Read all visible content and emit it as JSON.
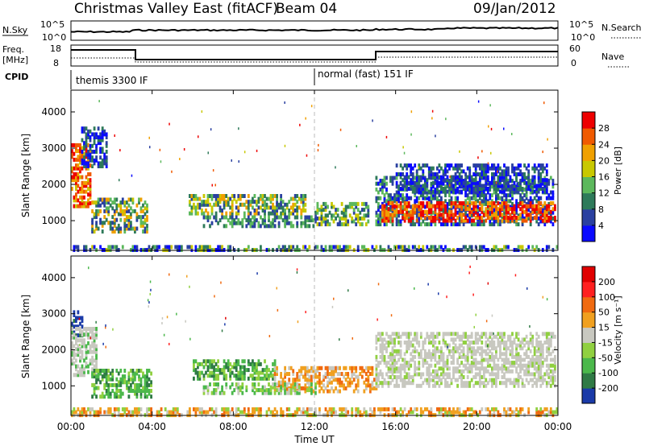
{
  "header": {
    "title": "Christmas Valley East (fitACF)",
    "beam": "Beam 04",
    "date": "09/Jan/2012"
  },
  "strip": {
    "nsky_label": "N.Sky",
    "nsky_ticks": [
      "10^5",
      "10^0"
    ],
    "nsearch_label": "N.Search",
    "nsearch_ticks": [
      "10^5",
      "10^0"
    ],
    "freq_label": "Freq.",
    "freq_unit": "[MHz]",
    "freq_ticks": [
      "18",
      "8"
    ],
    "nave_label": "Nave",
    "nave_ticks": [
      "60",
      "0"
    ],
    "cpid_label": "CPID",
    "cpid_modes": [
      {
        "label": "themis 3300 IF",
        "start_hour": 0
      },
      {
        "label": "normal (fast) 151 IF",
        "start_hour": 12
      }
    ]
  },
  "chart_data": [
    {
      "type": "heatmap",
      "name": "power",
      "ylabel": "Slant Range [km]",
      "xlabel": "Time UT",
      "xlim": [
        0,
        24
      ],
      "ylim": [
        180,
        4600
      ],
      "yticks": [
        "1000",
        "2000",
        "3000",
        "4000"
      ],
      "colorbar_label": "Power [dB]",
      "colorbar_ticks": [
        "4",
        "8",
        "12",
        "16",
        "20",
        "24",
        "28"
      ],
      "colors": [
        "#0a0aff",
        "#2a40a0",
        "#2e7a5a",
        "#5cb85c",
        "#c8c800",
        "#f0a000",
        "#f05a00",
        "#ee0000"
      ]
    },
    {
      "type": "heatmap",
      "name": "velocity",
      "ylabel": "Slant Range [km]",
      "xlabel": "Time UT",
      "xlim": [
        0,
        24
      ],
      "ylim": [
        180,
        4600
      ],
      "yticks": [
        "1000",
        "2000",
        "3000",
        "4000"
      ],
      "colorbar_label": "Velocity [m s⁻¹]",
      "colorbar_ticks": [
        "200",
        "100",
        "50",
        "15",
        "-15",
        "-50",
        "-100",
        "-200"
      ],
      "colors": [
        "#1a3aa8",
        "#2f7a45",
        "#4bb84b",
        "#90d040",
        "#c8c8c0",
        "#f0a020",
        "#f06a10",
        "#ff2020",
        "#e00000"
      ]
    }
  ],
  "xaxis": {
    "ticks": [
      "00:00",
      "04:00",
      "08:00",
      "12:00",
      "16:00",
      "20:00",
      "00:00"
    ],
    "label": "Time UT"
  }
}
